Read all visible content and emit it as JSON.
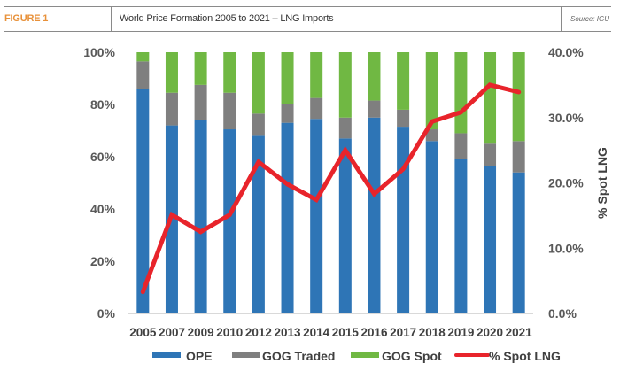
{
  "header": {
    "figure_label": "FIGURE 1",
    "title": "World Price Formation 2005 to 2021 – LNG Imports",
    "source": "Source: IGU"
  },
  "colors": {
    "figure_label": "#e8913a",
    "ope": "#2e75b6",
    "gog_traded": "#7f7f7f",
    "gog_spot": "#70b843",
    "spot_lng": "#e8242b"
  },
  "chart_data": {
    "type": "bar",
    "stacked": true,
    "title": "World Price Formation 2005 to 2021 – LNG Imports",
    "categories": [
      "2005",
      "2007",
      "2009",
      "2010",
      "2012",
      "2013",
      "2014",
      "2015",
      "2016",
      "2017",
      "2018",
      "2019",
      "2020",
      "2021"
    ],
    "series": [
      {
        "name": "OPE",
        "type": "bar",
        "axis": "left",
        "values": [
          86,
          72,
          74,
          70.5,
          68,
          73,
          74.5,
          67,
          75,
          71.5,
          66,
          59,
          56.5,
          54
        ]
      },
      {
        "name": "GOG Traded",
        "type": "bar",
        "axis": "left",
        "values": [
          10.5,
          12.5,
          13.5,
          14,
          8.5,
          7,
          8,
          8,
          6.5,
          6.5,
          4.5,
          10,
          8.5,
          12
        ]
      },
      {
        "name": "GOG Spot",
        "type": "bar",
        "axis": "left",
        "values": [
          3.5,
          15.5,
          12.5,
          15.5,
          23.5,
          20,
          17.5,
          25,
          18.5,
          22,
          29.5,
          31,
          35,
          34
        ]
      },
      {
        "name": "% Spot LNG",
        "type": "line",
        "axis": "right",
        "values": [
          3.3,
          15.1,
          12.5,
          15.1,
          23.2,
          19.8,
          17.4,
          25.0,
          18.3,
          22.1,
          29.4,
          30.8,
          35.0,
          33.9
        ]
      }
    ],
    "left_axis": {
      "ylim": [
        0,
        100
      ],
      "ticks": [
        "0%",
        "20%",
        "40%",
        "60%",
        "80%",
        "100%"
      ],
      "tick_values": [
        0,
        20,
        40,
        60,
        80,
        100
      ],
      "label": ""
    },
    "right_axis": {
      "ylim": [
        0,
        40
      ],
      "ticks": [
        "0.0%",
        "10.0%",
        "20.0%",
        "30.0%",
        "40.0%"
      ],
      "tick_values": [
        0,
        10,
        20,
        30,
        40
      ],
      "label": "% Spot LNG"
    },
    "xlabel": "",
    "grid": false,
    "legend_position": "bottom",
    "legend": [
      "OPE",
      "GOG Traded",
      "GOG Spot",
      "% Spot LNG"
    ]
  }
}
